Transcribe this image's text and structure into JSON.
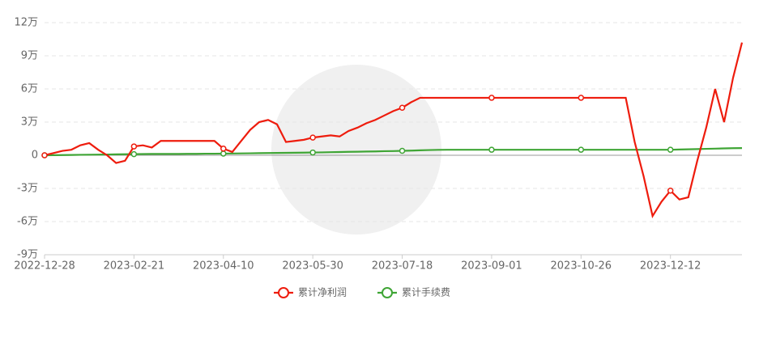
{
  "chart_data": {
    "type": "line",
    "categories": [
      "2022-12-28",
      null,
      null,
      null,
      null,
      null,
      null,
      null,
      null,
      null,
      "2023-02-21",
      null,
      null,
      null,
      null,
      null,
      null,
      null,
      null,
      null,
      "2023-04-10",
      null,
      null,
      null,
      null,
      null,
      null,
      null,
      null,
      null,
      "2023-05-30",
      null,
      null,
      null,
      null,
      null,
      null,
      null,
      null,
      null,
      "2023-07-18",
      null,
      null,
      null,
      null,
      null,
      null,
      null,
      null,
      null,
      "2023-09-01",
      null,
      null,
      null,
      null,
      null,
      null,
      null,
      null,
      null,
      "2023-10-26",
      null,
      null,
      null,
      null,
      null,
      null,
      null,
      null,
      null,
      "2023-12-12",
      null,
      null,
      null,
      null,
      null,
      null,
      null,
      null
    ],
    "series": [
      {
        "name": "累计净利润",
        "color": "#ee1c0d",
        "values": [
          0,
          0.2,
          0.4,
          0.5,
          0.9,
          1.1,
          0.5,
          0.0,
          -0.7,
          -0.5,
          0.8,
          0.9,
          0.7,
          1.3,
          1.3,
          1.3,
          1.3,
          1.3,
          1.3,
          1.3,
          0.6,
          0.3,
          1.3,
          2.3,
          3.0,
          3.2,
          2.8,
          1.2,
          1.3,
          1.4,
          1.6,
          1.7,
          1.8,
          1.7,
          2.2,
          2.5,
          2.9,
          3.2,
          3.6,
          4.0,
          4.3,
          4.8,
          5.2,
          5.2,
          5.2,
          5.2,
          5.2,
          5.2,
          5.2,
          5.2,
          5.2,
          5.2,
          5.2,
          5.2,
          5.2,
          5.2,
          5.2,
          5.2,
          5.2,
          5.2,
          5.2,
          5.2,
          5.2,
          5.2,
          5.2,
          5.2,
          1.2,
          -1.9,
          -5.5,
          -4.2,
          -3.2,
          -4.0,
          -3.8,
          -0.5,
          2.5,
          6.0,
          3.0,
          7.0,
          10.2
        ]
      },
      {
        "name": "累计手续费",
        "color": "#3fa535",
        "values": [
          0,
          0.01,
          0.02,
          0.03,
          0.04,
          0.05,
          0.06,
          0.07,
          0.08,
          0.09,
          0.1,
          0.11,
          0.12,
          0.12,
          0.12,
          0.12,
          0.13,
          0.13,
          0.14,
          0.14,
          0.15,
          0.16,
          0.17,
          0.18,
          0.19,
          0.2,
          0.21,
          0.22,
          0.23,
          0.24,
          0.25,
          0.26,
          0.28,
          0.29,
          0.31,
          0.32,
          0.34,
          0.35,
          0.37,
          0.38,
          0.4,
          0.42,
          0.45,
          0.47,
          0.49,
          0.5,
          0.5,
          0.5,
          0.5,
          0.5,
          0.5,
          0.5,
          0.5,
          0.5,
          0.5,
          0.5,
          0.5,
          0.5,
          0.5,
          0.5,
          0.5,
          0.5,
          0.5,
          0.5,
          0.5,
          0.5,
          0.5,
          0.5,
          0.5,
          0.5,
          0.5,
          0.52,
          0.54,
          0.56,
          0.58,
          0.6,
          0.62,
          0.64,
          0.65
        ]
      }
    ],
    "ylim": [
      -9,
      12
    ],
    "yticks": [
      {
        "value": -9,
        "label": "-9万"
      },
      {
        "value": -6,
        "label": "-6万"
      },
      {
        "value": -3,
        "label": "-3万"
      },
      0,
      {
        "value": 3,
        "label": "3万"
      },
      {
        "value": 6,
        "label": "6万"
      },
      {
        "value": 9,
        "label": "9万"
      },
      {
        "value": 12,
        "label": "12万"
      }
    ],
    "grid": true,
    "legend": "bottom"
  }
}
